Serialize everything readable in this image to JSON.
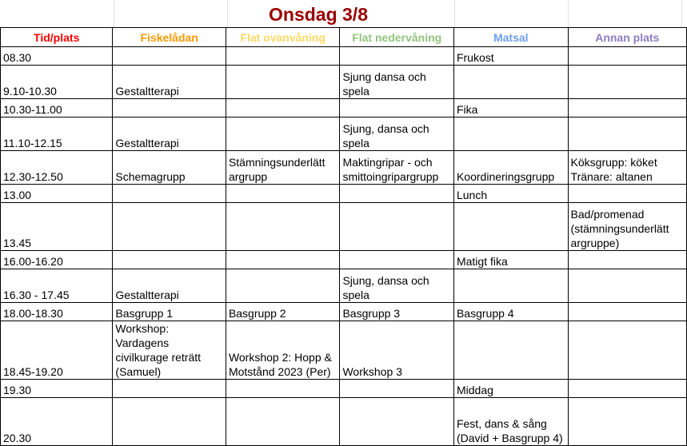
{
  "title": "Onsdag 3/8",
  "header_colors": [
    "#ff0000",
    "#ff9900",
    "#ffd966",
    "#93c47d",
    "#6d9eeb",
    "#8e7cc3"
  ],
  "headers": [
    "Tid/plats",
    "Fiskelådan",
    "Flat ovanvåning",
    "Flat nedervåning",
    "Matsal",
    "Annan plats"
  ],
  "rows": [
    [
      "08.30",
      "",
      "",
      "",
      "Frukost",
      ""
    ],
    [
      "9.10-10.30",
      "Gestaltterapi",
      "",
      "Sjung dansa och spela",
      "",
      ""
    ],
    [
      "10.30-11.00",
      "",
      "",
      "",
      "Fika",
      ""
    ],
    [
      "11.10-12.15",
      "Gestaltterapi",
      "",
      "Sjung, dansa och spela",
      "",
      ""
    ],
    [
      "12.30-12.50",
      "Schemagrupp",
      "Stämningsunderlätt argrupp",
      "Maktingripar - och smittoingripargrupp",
      "Koordineringsgrupp",
      "Köksgrupp: köket Tränare: altanen"
    ],
    [
      "13.00",
      "",
      "",
      "",
      "Lunch",
      ""
    ],
    [
      "13.45",
      "",
      "",
      "",
      "",
      "Bad/promenad (stämningsunderlätt argruppe)"
    ],
    [
      "16.00-16.20",
      "",
      "",
      "",
      "Matigt fika",
      ""
    ],
    [
      "16.30 - 17.45",
      "Gestaltterapi",
      "",
      "Sjung, dansa och spela",
      "",
      ""
    ],
    [
      "18.00-18.30",
      "Basgrupp 1",
      "Basgrupp 2",
      "Basgrupp 3",
      "Basgrupp 4",
      ""
    ],
    [
      "18.45-19.20",
      "Workshop: Vardagens civilkurage reträtt (Samuel)",
      "Workshop 2: Hopp & Motstånd 2023 (Per)",
      "Workshop 3",
      "",
      ""
    ],
    [
      "19.30",
      "",
      "",
      "",
      "Middag",
      ""
    ],
    [
      "20.30",
      "",
      "",
      "",
      "Fest, dans & sång (David + Basgrupp 4)",
      ""
    ]
  ]
}
